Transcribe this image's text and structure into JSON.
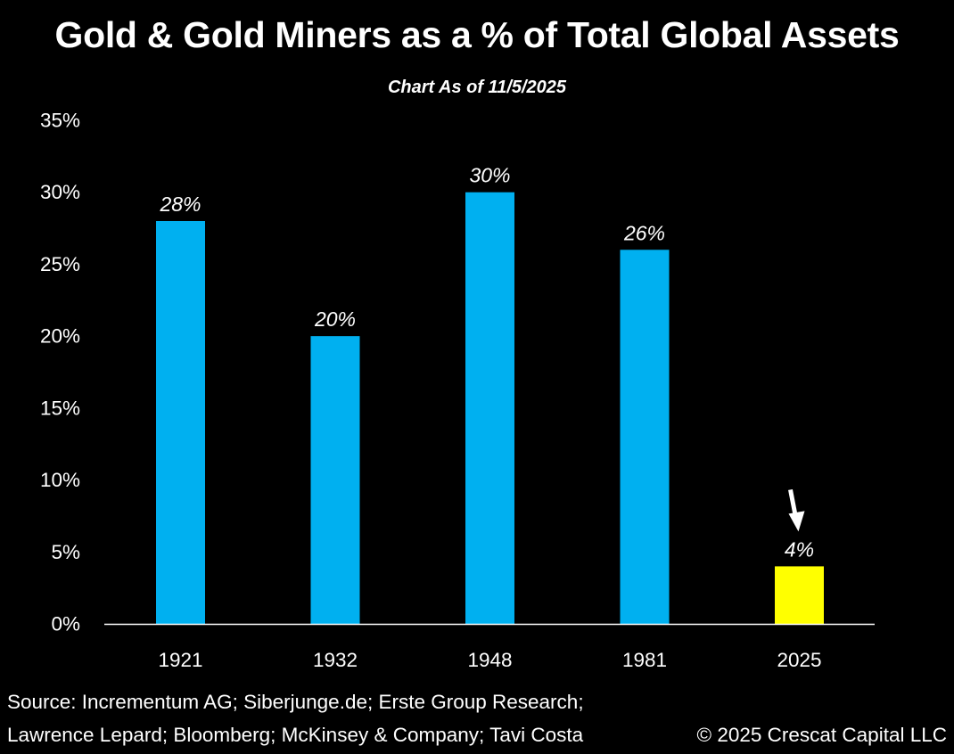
{
  "chart_data": {
    "type": "bar",
    "title": "Gold & Gold Miners as a % of Total Global Assets",
    "subtitle": "Chart As of 11/5/2025",
    "categories": [
      "1921",
      "1932",
      "1948",
      "1981",
      "2025"
    ],
    "values": [
      28,
      20,
      30,
      26,
      4
    ],
    "data_labels": [
      "28%",
      "20%",
      "30%",
      "26%",
      "4%"
    ],
    "bar_colors": [
      "#00B0F0",
      "#00B0F0",
      "#00B0F0",
      "#00B0F0",
      "#FFFF00"
    ],
    "ylim": [
      0,
      35
    ],
    "yticks": [
      0,
      5,
      10,
      15,
      20,
      25,
      30,
      35
    ],
    "ytick_labels": [
      "0%",
      "5%",
      "10%",
      "15%",
      "20%",
      "25%",
      "30%",
      "35%"
    ],
    "xlabel": "",
    "ylabel": "",
    "grid": false,
    "annotation": {
      "type": "arrow",
      "target_category": "2025",
      "color": "#FFFFFF"
    }
  },
  "footer": {
    "source_line1": "Source: Incrementum AG; Siberjunge.de; Erste Group Research;",
    "source_line2": "Lawrence Lepard; Bloomberg; McKinsey & Company; Tavi Costa",
    "copyright": "© 2025 Crescat Capital LLC"
  },
  "colors": {
    "background": "#000000",
    "text": "#FFFFFF",
    "axis": "#FFFFFF"
  }
}
